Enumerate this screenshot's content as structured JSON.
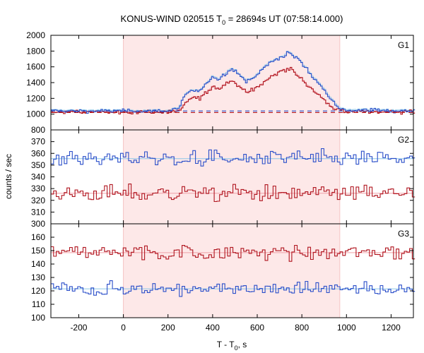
{
  "chart_data": {
    "type": "line",
    "title": "KONUS-WIND 020515 T",
    "title_sub": "0",
    "title_rest": " = 28694s UT (07:58:14.000)",
    "xlabel_main": "T - T",
    "xlabel_sub": "0",
    "xlabel_unit": ", s",
    "ylabel": "counts / sec",
    "xlim": [
      -325,
      1300
    ],
    "x_ticks": [
      -200,
      0,
      200,
      400,
      600,
      800,
      1000,
      1200
    ],
    "shade_interval": [
      0,
      970
    ],
    "colors": {
      "shade": "#fde8e8",
      "shade_edge": "#f6c4c4",
      "blue": "#2a4ec9",
      "red": "#b0141e",
      "light_blue": "#8cc6e8",
      "light_red": "#f0a0a8"
    },
    "panels": [
      {
        "label": "G1",
        "ylim": [
          800,
          2000
        ],
        "y_ticks": [
          800,
          1000,
          1200,
          1400,
          1600,
          1800,
          2000
        ],
        "show_bottom_tick": true,
        "blue_bg": 1040,
        "red_bg": 1020,
        "blue_pts": [
          [
            -325,
            1040
          ],
          [
            0,
            1040
          ],
          [
            200,
            1040
          ],
          [
            250,
            1075
          ],
          [
            280,
            1250
          ],
          [
            310,
            1300
          ],
          [
            340,
            1280
          ],
          [
            370,
            1370
          ],
          [
            400,
            1480
          ],
          [
            430,
            1440
          ],
          [
            460,
            1530
          ],
          [
            480,
            1570
          ],
          [
            500,
            1560
          ],
          [
            520,
            1480
          ],
          [
            550,
            1430
          ],
          [
            580,
            1440
          ],
          [
            600,
            1500
          ],
          [
            620,
            1560
          ],
          [
            640,
            1620
          ],
          [
            660,
            1660
          ],
          [
            680,
            1680
          ],
          [
            700,
            1700
          ],
          [
            720,
            1740
          ],
          [
            740,
            1790
          ],
          [
            760,
            1740
          ],
          [
            780,
            1700
          ],
          [
            800,
            1640
          ],
          [
            820,
            1580
          ],
          [
            840,
            1500
          ],
          [
            860,
            1440
          ],
          [
            880,
            1380
          ],
          [
            900,
            1320
          ],
          [
            920,
            1240
          ],
          [
            940,
            1170
          ],
          [
            960,
            1100
          ],
          [
            980,
            1060
          ],
          [
            1000,
            1050
          ],
          [
            1100,
            1050
          ],
          [
            1300,
            1040
          ]
        ],
        "red_pts": [
          [
            -325,
            1025
          ],
          [
            0,
            1025
          ],
          [
            200,
            1025
          ],
          [
            250,
            1045
          ],
          [
            280,
            1130
          ],
          [
            310,
            1220
          ],
          [
            340,
            1200
          ],
          [
            370,
            1270
          ],
          [
            400,
            1350
          ],
          [
            430,
            1320
          ],
          [
            460,
            1390
          ],
          [
            480,
            1420
          ],
          [
            500,
            1400
          ],
          [
            520,
            1350
          ],
          [
            550,
            1290
          ],
          [
            580,
            1300
          ],
          [
            600,
            1330
          ],
          [
            620,
            1380
          ],
          [
            640,
            1420
          ],
          [
            660,
            1470
          ],
          [
            680,
            1500
          ],
          [
            700,
            1540
          ],
          [
            720,
            1560
          ],
          [
            740,
            1580
          ],
          [
            760,
            1550
          ],
          [
            780,
            1500
          ],
          [
            800,
            1440
          ],
          [
            820,
            1390
          ],
          [
            840,
            1330
          ],
          [
            860,
            1280
          ],
          [
            880,
            1220
          ],
          [
            900,
            1170
          ],
          [
            920,
            1120
          ],
          [
            940,
            1080
          ],
          [
            960,
            1050
          ],
          [
            980,
            1035
          ],
          [
            1000,
            1030
          ],
          [
            1100,
            1030
          ],
          [
            1300,
            1025
          ]
        ]
      },
      {
        "label": "G2",
        "ylim": [
          300,
          380
        ],
        "y_ticks": [
          300,
          310,
          320,
          330,
          340,
          350,
          360,
          370
        ],
        "show_bottom_tick": true,
        "blue_mean": 355.5,
        "blue_amp": 5,
        "red_mean": 326,
        "red_amp": 5
      },
      {
        "label": "G3",
        "ylim": [
          100,
          170
        ],
        "y_ticks": [
          100,
          110,
          120,
          130,
          140,
          150,
          160
        ],
        "show_bottom_tick": true,
        "red_mean": 148.5,
        "red_amp": 4,
        "blue_mean": 121.5,
        "blue_amp": 3.5
      }
    ]
  }
}
